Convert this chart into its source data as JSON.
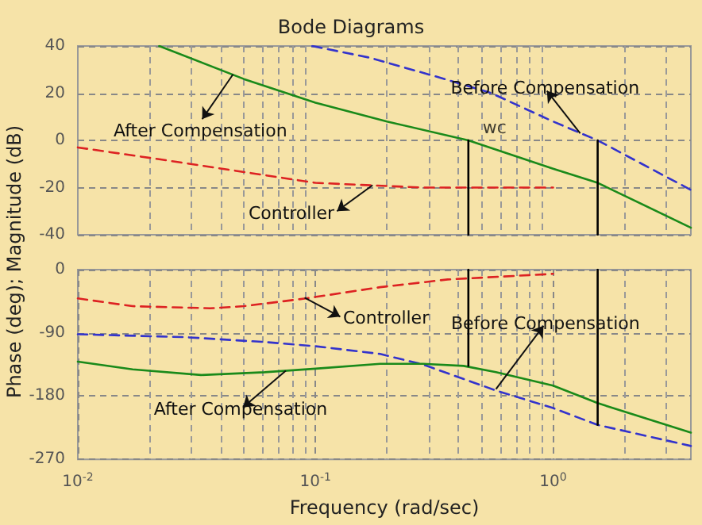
{
  "chart_data": [
    {
      "type": "line",
      "title": "Bode Diagrams",
      "ylabel": "Phase (deg); Magnitude (dB)",
      "xlim": [
        0.01,
        3.8
      ],
      "ylim": [
        -40,
        40
      ],
      "yticks": [
        -40,
        -20,
        0,
        20,
        40
      ],
      "log": "x",
      "grid": true,
      "tick_labels": "y",
      "marker": "none",
      "series": [
        {
          "color": "#1a8a1a",
          "line_style": "solid",
          "x": [
            0.022,
            0.05,
            0.1,
            0.2,
            0.44,
            1,
            1.54,
            3.8
          ],
          "values": [
            40,
            26,
            16,
            8,
            0,
            -12,
            -18,
            -37
          ]
        },
        {
          "color": "#3333cc",
          "line_style": "dashed",
          "x": [
            0.097,
            0.17,
            0.35,
            0.55,
            1,
            1.54,
            3.8
          ],
          "values": [
            40,
            35,
            26,
            20,
            8,
            0,
            -21
          ]
        },
        {
          "color": "#dd2222",
          "line_style": "dashed",
          "x": [
            0.01,
            0.022,
            0.047,
            0.1,
            0.28,
            0.5,
            1
          ],
          "values": [
            -3,
            -8,
            -13,
            -18,
            -20,
            -20,
            -20
          ]
        },
        {
          "color": "#000000",
          "line_style": "solid",
          "x": [
            0.44,
            0.44
          ],
          "values": [
            0,
            -40
          ]
        },
        {
          "color": "#000000",
          "line_style": "solid",
          "x": [
            1.54,
            1.54
          ],
          "values": [
            0,
            -40
          ]
        }
      ],
      "annotations": [
        {
          "text": "After Compensation",
          "x": 0.045,
          "y": 28
        },
        {
          "text": "Controller",
          "x": 0.174,
          "y": -19
        },
        {
          "text": "Before Compensation",
          "x": 1.3,
          "y": 3
        },
        {
          "text": "wc",
          "x": 0.44,
          "y": 0
        }
      ]
    },
    {
      "type": "line",
      "xlabel": "Frequency (rad/sec)",
      "xlim": [
        0.01,
        3.8
      ],
      "ylim": [
        -270,
        0
      ],
      "yticks": [
        -270,
        -180,
        -90,
        0
      ],
      "xticks": [
        {
          "value": 0.01,
          "label": "10$^{-2}$"
        },
        {
          "value": 0.1,
          "label": "10$^{-1}$"
        },
        {
          "value": 1,
          "label": "10$^{0}$"
        }
      ],
      "log": "x",
      "grid": true,
      "marker": "none",
      "series": [
        {
          "color": "#dd2222",
          "line_style": "dashed",
          "x": [
            0.01,
            0.017,
            0.036,
            0.05,
            0.091,
            0.187,
            0.36,
            1
          ],
          "values": [
            -41,
            -52,
            -55,
            -52,
            -41,
            -25,
            -14,
            -6
          ]
        },
        {
          "color": "#3333cc",
          "line_style": "dashed",
          "x": [
            0.01,
            0.028,
            0.061,
            0.1,
            0.187,
            0.283,
            0.575,
            1,
            1.54,
            3.8
          ],
          "values": [
            -92,
            -96,
            -103,
            -109,
            -120,
            -135,
            -172,
            -197,
            -221,
            -251
          ]
        },
        {
          "color": "#1a8a1a",
          "line_style": "solid",
          "x": [
            0.01,
            0.017,
            0.033,
            0.061,
            0.1,
            0.187,
            0.283,
            0.42,
            0.575,
            1,
            1.54,
            3.8
          ],
          "values": [
            -131,
            -142,
            -150,
            -146,
            -141,
            -134,
            -134,
            -137,
            -146,
            -165,
            -190,
            -232
          ]
        },
        {
          "color": "#000000",
          "line_style": "solid",
          "x": [
            0.44,
            0.44
          ],
          "values": [
            0,
            -137
          ]
        },
        {
          "color": "#000000",
          "line_style": "solid",
          "x": [
            1.54,
            1.54
          ],
          "values": [
            0,
            -221
          ]
        }
      ],
      "annotations": [
        {
          "text": "Controller",
          "x": 0.09,
          "y": -40
        },
        {
          "text": "Before Compensation",
          "x": 0.575,
          "y": -170
        },
        {
          "text": "After Compensation",
          "x": 0.075,
          "y": -144
        }
      ]
    }
  ]
}
